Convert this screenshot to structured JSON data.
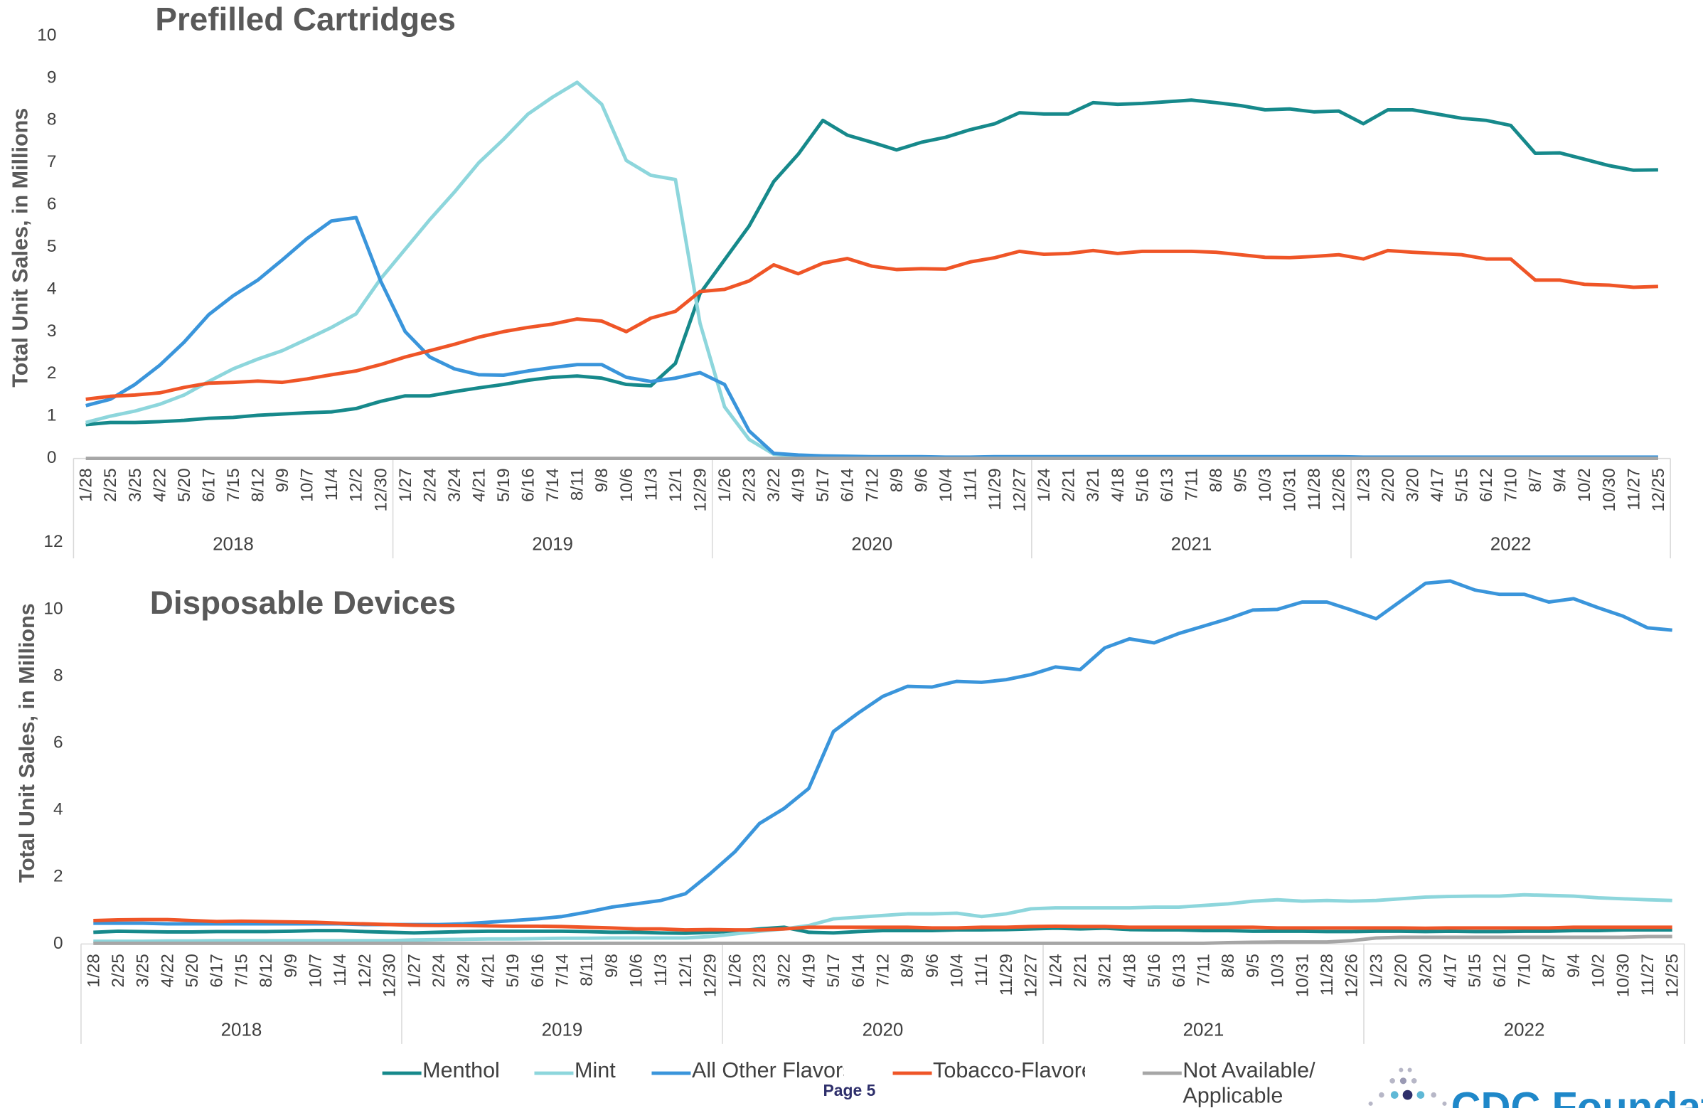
{
  "chart_data": [
    {
      "type": "line",
      "title": "Prefilled Cartridges",
      "y_label": "Total Unit Sales, in Millions",
      "categories": [
        "1/28",
        "2/25",
        "3/25",
        "4/22",
        "5/20",
        "6/17",
        "7/15",
        "8/12",
        "9/9",
        "10/7",
        "11/4",
        "12/2",
        "12/30",
        "1/27",
        "2/24",
        "3/24",
        "4/21",
        "5/19",
        "6/16",
        "7/14",
        "8/11",
        "9/8",
        "10/6",
        "11/3",
        "12/1",
        "12/29",
        "1/26",
        "2/23",
        "3/22",
        "4/19",
        "5/17",
        "6/14",
        "7/12",
        "8/9",
        "9/6",
        "10/4",
        "11/1",
        "11/29",
        "12/27",
        "1/24",
        "2/21",
        "3/21",
        "4/18",
        "5/16",
        "6/13",
        "7/11",
        "8/8",
        "9/5",
        "10/3",
        "10/31",
        "11/28",
        "12/26",
        "1/23",
        "2/20",
        "3/20",
        "4/17",
        "5/15",
        "6/12",
        "7/10",
        "8/7",
        "9/4",
        "10/2",
        "10/30",
        "11/27",
        "12/25"
      ],
      "years": [
        "2018",
        "2019",
        "2020",
        "2021",
        "2022"
      ],
      "ylim": [
        0,
        10
      ],
      "yticks": [
        0,
        1,
        2,
        3,
        4,
        5,
        6,
        7,
        8,
        9,
        10
      ],
      "grid": false,
      "series": [
        {
          "name": "Menthol",
          "color": "#16898b",
          "values": [
            0.8,
            0.85,
            0.85,
            0.87,
            0.9,
            0.95,
            0.97,
            1.02,
            1.05,
            1.08,
            1.1,
            1.18,
            1.35,
            1.48,
            1.48,
            1.58,
            1.67,
            1.75,
            1.85,
            1.92,
            1.95,
            1.9,
            1.75,
            1.72,
            2.25,
            3.9,
            4.7,
            5.5,
            6.55,
            7.2,
            8.0,
            7.65,
            7.48,
            7.3,
            7.48,
            7.6,
            7.78,
            7.92,
            8.18,
            8.15,
            8.15,
            8.42,
            8.38,
            8.4,
            8.44,
            8.48,
            8.42,
            8.35,
            8.25,
            8.27,
            8.2,
            8.22,
            7.92,
            8.25,
            8.25,
            8.15,
            8.05,
            8.0,
            7.88,
            7.22,
            7.23,
            7.08,
            6.93,
            6.82,
            6.83
          ]
        },
        {
          "name": "Mint",
          "color": "#8dd6dc",
          "values": [
            0.85,
            1.0,
            1.12,
            1.28,
            1.5,
            1.82,
            2.12,
            2.35,
            2.55,
            2.82,
            3.1,
            3.42,
            4.25,
            4.95,
            5.65,
            6.3,
            7.0,
            7.55,
            8.15,
            8.55,
            8.9,
            8.38,
            7.05,
            6.7,
            6.6,
            3.2,
            1.22,
            0.45,
            0.1,
            0.05,
            0.03,
            0.02,
            0.02,
            0.02,
            0.02,
            0.02,
            0.02,
            0.02,
            0.02,
            0.02,
            0.02,
            0.02,
            0.02,
            0.02,
            0.02,
            0.02,
            0.02,
            0.02,
            0.02,
            0.02,
            0.02,
            0.02,
            0.02,
            0.02,
            0.02,
            0.02,
            0.02,
            0.02,
            0.02,
            0.02,
            0.02,
            0.02,
            0.02,
            0.02,
            0.02
          ]
        },
        {
          "name": "All Other Flavors",
          "color": "#3a95db",
          "values": [
            1.25,
            1.4,
            1.75,
            2.2,
            2.75,
            3.4,
            3.85,
            4.22,
            4.7,
            5.2,
            5.62,
            5.7,
            4.2,
            3.0,
            2.4,
            2.12,
            1.98,
            1.97,
            2.07,
            2.15,
            2.22,
            2.22,
            1.92,
            1.82,
            1.9,
            2.03,
            1.75,
            0.65,
            0.12,
            0.08,
            0.06,
            0.05,
            0.04,
            0.04,
            0.04,
            0.03,
            0.03,
            0.04,
            0.04,
            0.04,
            0.04,
            0.04,
            0.04,
            0.04,
            0.04,
            0.04,
            0.04,
            0.04,
            0.04,
            0.04,
            0.04,
            0.04,
            0.03,
            0.03,
            0.03,
            0.03,
            0.03,
            0.03,
            0.03,
            0.03,
            0.03,
            0.03,
            0.03,
            0.03,
            0.03
          ]
        },
        {
          "name": "Tobacco-Flavored",
          "color": "#ef5527",
          "values": [
            1.4,
            1.47,
            1.5,
            1.55,
            1.68,
            1.78,
            1.8,
            1.83,
            1.8,
            1.88,
            1.98,
            2.07,
            2.22,
            2.4,
            2.55,
            2.7,
            2.87,
            3.0,
            3.1,
            3.18,
            3.3,
            3.25,
            3.0,
            3.32,
            3.48,
            3.95,
            4.0,
            4.2,
            4.58,
            4.37,
            4.62,
            4.73,
            4.55,
            4.47,
            4.49,
            4.48,
            4.65,
            4.75,
            4.9,
            4.83,
            4.85,
            4.92,
            4.85,
            4.9,
            4.9,
            4.9,
            4.88,
            4.82,
            4.76,
            4.75,
            4.78,
            4.82,
            4.72,
            4.92,
            4.88,
            4.85,
            4.82,
            4.72,
            4.72,
            4.22,
            4.22,
            4.12,
            4.1,
            4.05,
            4.07
          ]
        },
        {
          "name": "Not Available/ Applicable",
          "color": "#a6a6a6",
          "values": [
            0,
            0,
            0,
            0,
            0,
            0,
            0,
            0,
            0,
            0,
            0,
            0,
            0,
            0,
            0,
            0,
            0,
            0,
            0,
            0,
            0,
            0,
            0,
            0,
            0,
            0,
            0,
            0,
            0,
            0,
            0,
            0,
            0,
            0,
            0,
            0,
            0,
            0,
            0,
            0,
            0,
            0,
            0,
            0,
            0,
            0,
            0,
            0,
            0,
            0,
            0,
            0,
            0,
            0,
            0,
            0,
            0,
            0,
            0,
            0,
            0,
            0,
            0,
            0,
            0
          ]
        }
      ]
    },
    {
      "type": "line",
      "title": "Disposable Devices",
      "y_label": "Total Unit Sales, in Millions",
      "categories": [
        "1/28",
        "2/25",
        "3/25",
        "4/22",
        "5/20",
        "6/17",
        "7/15",
        "8/12",
        "9/9",
        "10/7",
        "11/4",
        "12/2",
        "12/30",
        "1/27",
        "2/24",
        "3/24",
        "4/21",
        "5/19",
        "6/16",
        "7/14",
        "8/11",
        "9/8",
        "10/6",
        "11/3",
        "12/1",
        "12/29",
        "1/26",
        "2/23",
        "3/22",
        "4/19",
        "5/17",
        "6/14",
        "7/12",
        "8/9",
        "9/6",
        "10/4",
        "11/1",
        "11/29",
        "12/27",
        "1/24",
        "2/21",
        "3/21",
        "4/18",
        "5/16",
        "6/13",
        "7/11",
        "8/8",
        "9/5",
        "10/3",
        "10/31",
        "11/28",
        "12/26",
        "1/23",
        "2/20",
        "3/20",
        "4/17",
        "5/15",
        "6/12",
        "7/10",
        "8/7",
        "9/4",
        "10/2",
        "10/30",
        "11/27",
        "12/25"
      ],
      "years": [
        "2018",
        "2019",
        "2020",
        "2021",
        "2022"
      ],
      "ylim": [
        0,
        12
      ],
      "yticks": [
        0,
        2,
        4,
        6,
        8,
        10,
        12
      ],
      "grid": false,
      "series": [
        {
          "name": "Menthol",
          "color": "#16898b",
          "values": [
            0.35,
            0.38,
            0.37,
            0.36,
            0.36,
            0.37,
            0.37,
            0.37,
            0.38,
            0.4,
            0.4,
            0.37,
            0.35,
            0.33,
            0.35,
            0.37,
            0.38,
            0.38,
            0.38,
            0.38,
            0.37,
            0.35,
            0.35,
            0.33,
            0.32,
            0.35,
            0.38,
            0.45,
            0.5,
            0.35,
            0.33,
            0.37,
            0.4,
            0.4,
            0.4,
            0.42,
            0.42,
            0.43,
            0.45,
            0.47,
            0.45,
            0.47,
            0.43,
            0.42,
            0.42,
            0.4,
            0.4,
            0.38,
            0.38,
            0.38,
            0.37,
            0.37,
            0.38,
            0.38,
            0.37,
            0.38,
            0.37,
            0.37,
            0.38,
            0.38,
            0.4,
            0.4,
            0.42,
            0.42,
            0.42
          ]
        },
        {
          "name": "Mint",
          "color": "#8dd6dc",
          "values": [
            0.08,
            0.08,
            0.08,
            0.09,
            0.09,
            0.1,
            0.1,
            0.1,
            0.1,
            0.1,
            0.1,
            0.1,
            0.1,
            0.12,
            0.13,
            0.14,
            0.15,
            0.15,
            0.16,
            0.17,
            0.17,
            0.18,
            0.18,
            0.18,
            0.18,
            0.22,
            0.3,
            0.38,
            0.45,
            0.55,
            0.75,
            0.8,
            0.85,
            0.9,
            0.9,
            0.92,
            0.82,
            0.9,
            1.05,
            1.08,
            1.08,
            1.08,
            1.08,
            1.1,
            1.1,
            1.15,
            1.2,
            1.28,
            1.32,
            1.28,
            1.3,
            1.28,
            1.3,
            1.35,
            1.4,
            1.42,
            1.43,
            1.43,
            1.47,
            1.45,
            1.43,
            1.38,
            1.35,
            1.32,
            1.3
          ]
        },
        {
          "name": "All Other Flavors",
          "color": "#3a95db",
          "values": [
            0.62,
            0.62,
            0.62,
            0.6,
            0.6,
            0.6,
            0.6,
            0.6,
            0.6,
            0.6,
            0.6,
            0.58,
            0.58,
            0.58,
            0.58,
            0.6,
            0.65,
            0.7,
            0.75,
            0.82,
            0.95,
            1.1,
            1.2,
            1.3,
            1.5,
            2.1,
            2.75,
            3.6,
            4.05,
            4.65,
            6.35,
            6.9,
            7.4,
            7.7,
            7.68,
            7.85,
            7.82,
            7.9,
            8.05,
            8.28,
            8.2,
            8.85,
            9.12,
            9.0,
            9.28,
            9.5,
            9.72,
            9.98,
            10.0,
            10.22,
            10.22,
            9.98,
            9.72,
            10.25,
            10.78,
            10.85,
            10.58,
            10.45,
            10.45,
            10.22,
            10.32,
            10.05,
            9.8,
            9.45,
            9.38
          ]
        },
        {
          "name": "Tobacco-Flavored",
          "color": "#ef5527",
          "values": [
            0.7,
            0.72,
            0.73,
            0.73,
            0.7,
            0.67,
            0.68,
            0.67,
            0.66,
            0.65,
            0.62,
            0.6,
            0.58,
            0.56,
            0.55,
            0.55,
            0.54,
            0.53,
            0.53,
            0.52,
            0.5,
            0.48,
            0.45,
            0.45,
            0.42,
            0.43,
            0.42,
            0.42,
            0.45,
            0.5,
            0.5,
            0.5,
            0.5,
            0.5,
            0.48,
            0.48,
            0.5,
            0.5,
            0.52,
            0.53,
            0.52,
            0.52,
            0.5,
            0.5,
            0.5,
            0.5,
            0.5,
            0.5,
            0.48,
            0.48,
            0.48,
            0.48,
            0.48,
            0.48,
            0.47,
            0.48,
            0.48,
            0.48,
            0.48,
            0.48,
            0.5,
            0.5,
            0.5,
            0.5,
            0.5
          ]
        },
        {
          "name": "Not Available/ Applicable",
          "color": "#a6a6a6",
          "values": [
            0.02,
            0.02,
            0.02,
            0.02,
            0.02,
            0.02,
            0.02,
            0.02,
            0.02,
            0.02,
            0.02,
            0.02,
            0.02,
            0.02,
            0.02,
            0.02,
            0.02,
            0.02,
            0.02,
            0.02,
            0.02,
            0.02,
            0.02,
            0.02,
            0.02,
            0.02,
            0.02,
            0.02,
            0.02,
            0.02,
            0.02,
            0.02,
            0.02,
            0.02,
            0.02,
            0.02,
            0.02,
            0.02,
            0.02,
            0.02,
            0.02,
            0.02,
            0.02,
            0.02,
            0.02,
            0.02,
            0.04,
            0.05,
            0.06,
            0.06,
            0.06,
            0.1,
            0.18,
            0.2,
            0.2,
            0.2,
            0.2,
            0.2,
            0.2,
            0.2,
            0.2,
            0.2,
            0.2,
            0.22,
            0.22
          ]
        }
      ]
    }
  ],
  "footer": {
    "page": "Page 5",
    "logo": "CDC Foundation"
  }
}
